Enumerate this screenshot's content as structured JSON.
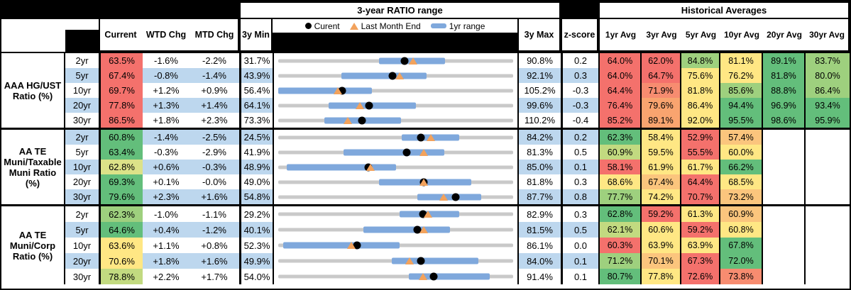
{
  "header": {
    "range_title": "3-year RATIO range",
    "hist_title": "Historical Averages",
    "col_current": "Current",
    "col_wtd": "WTD Chg",
    "col_mtd": "MTD Chg",
    "col_3ymin": "3y Min",
    "col_3ymax": "3y Max",
    "col_z": "z-score",
    "avg_cols": [
      "1yr Avg",
      "3yr Avg",
      "5yr Avg",
      "10yr Avg",
      "20yr Avg",
      "30yr Avg"
    ],
    "legend": {
      "current": "Curent",
      "last_month": "Last Month End",
      "range": "1yr range"
    },
    "legend_icons": [
      "current-dot-icon",
      "last-month-triangle-icon",
      "1yr-range-bar-icon"
    ]
  },
  "palette": {
    "r": "#F4716C",
    "s": "#F78C70",
    "o": "#F9A46F",
    "yo": "#FBC57D",
    "y": "#FFE784",
    "yg": "#DCE288",
    "gy": "#C2DA80",
    "lg": "#9ED07E",
    "g": "#63BE7B",
    "stripe": "#BDD7EE",
    "bar": "#7FA8DC",
    "line": "#C9C9C9",
    "tri": "#F2A25C"
  },
  "chart_data": {
    "type": "table",
    "note_series": [
      "Current (black dot)",
      "Last Month End (orange triangle)",
      "1yr range (blue bar)",
      "3yr range (gray line, spans 3y Min to 3y Max)"
    ],
    "groups": [
      {
        "label": "AAA HG/UST Ratio (%)",
        "rows": [
          {
            "tenor": "2yr",
            "current": "63.5%",
            "cc": "r",
            "wtd": "-1.6%",
            "mtd": "-2.2%",
            "min": "31.7%",
            "max": "90.8%",
            "z": "0.2",
            "range1yr": [
              57.0,
              73.7
            ],
            "avgs": [
              [
                "64.0%",
                "r"
              ],
              [
                "62.0%",
                "r"
              ],
              [
                "84.8%",
                "lg"
              ],
              [
                "81.1%",
                "y"
              ],
              [
                "89.1%",
                "g"
              ],
              [
                "83.7%",
                "lg"
              ]
            ]
          },
          {
            "tenor": "5yr",
            "current": "67.4%",
            "cc": "r",
            "wtd": "-0.8%",
            "mtd": "-1.4%",
            "min": "43.9%",
            "max": "92.1%",
            "z": "0.3",
            "range1yr": [
              56.9,
              74.4
            ],
            "avgs": [
              [
                "64.0%",
                "r"
              ],
              [
                "64.7%",
                "r"
              ],
              [
                "75.6%",
                "y"
              ],
              [
                "76.2%",
                "y"
              ],
              [
                "81.8%",
                "g"
              ],
              [
                "80.0%",
                "lg"
              ]
            ]
          },
          {
            "tenor": "10yr",
            "current": "69.7%",
            "cc": "r",
            "wtd": "+1.2%",
            "mtd": "+0.9%",
            "min": "56.4%",
            "max": "105.2%",
            "z": "-0.3",
            "range1yr": [
              56.4,
              75.9
            ],
            "avgs": [
              [
                "64.4%",
                "r"
              ],
              [
                "71.9%",
                "s"
              ],
              [
                "81.8%",
                "y"
              ],
              [
                "85.6%",
                "lg"
              ],
              [
                "88.8%",
                "g"
              ],
              [
                "86.4%",
                "lg"
              ]
            ]
          },
          {
            "tenor": "20yr",
            "current": "77.8%",
            "cc": "r",
            "wtd": "+1.3%",
            "mtd": "+1.4%",
            "min": "64.1%",
            "max": "99.6%",
            "z": "-0.3",
            "range1yr": [
              71.7,
              84.9
            ],
            "avgs": [
              [
                "76.4%",
                "r"
              ],
              [
                "79.6%",
                "o"
              ],
              [
                "86.4%",
                "y"
              ],
              [
                "94.4%",
                "g"
              ],
              [
                "96.9%",
                "g"
              ],
              [
                "93.4%",
                "g"
              ]
            ]
          },
          {
            "tenor": "30yr",
            "current": "86.5%",
            "cc": "r",
            "wtd": "+1.8%",
            "mtd": "+2.3%",
            "min": "73.3%",
            "max": "110.2%",
            "z": "-0.4",
            "range1yr": [
              80.5,
              92.6
            ],
            "avgs": [
              [
                "85.2%",
                "r"
              ],
              [
                "89.1%",
                "o"
              ],
              [
                "92.0%",
                "y"
              ],
              [
                "95.5%",
                "g"
              ],
              [
                "98.6%",
                "g"
              ],
              [
                "95.9%",
                "g"
              ]
            ]
          }
        ]
      },
      {
        "label": "AA TE Muni/Taxable Muni Ratio (%)",
        "rows": [
          {
            "tenor": "2yr",
            "current": "60.8%",
            "cc": "g",
            "wtd": "-1.4%",
            "mtd": "-2.5%",
            "min": "24.5%",
            "max": "84.2%",
            "z": "0.2",
            "range1yr": [
              55.8,
              70.5
            ],
            "avgs": [
              [
                "62.3%",
                "g"
              ],
              [
                "58.4%",
                "y"
              ],
              [
                "52.9%",
                "r"
              ],
              [
                "57.4%",
                "yo"
              ],
              null,
              null
            ]
          },
          {
            "tenor": "5yr",
            "current": "63.4%",
            "cc": "g",
            "wtd": "-0.3%",
            "mtd": "-2.9%",
            "min": "41.9%",
            "max": "81.3%",
            "z": "0.5",
            "range1yr": [
              52.9,
              69.7
            ],
            "avgs": [
              [
                "60.9%",
                "gy"
              ],
              [
                "59.5%",
                "y"
              ],
              [
                "55.5%",
                "r"
              ],
              [
                "60.0%",
                "y"
              ],
              null,
              null
            ]
          },
          {
            "tenor": "10yr",
            "current": "62.8%",
            "cc": "yg",
            "wtd": "+0.6%",
            "mtd": "-0.3%",
            "min": "48.9%",
            "max": "85.0%",
            "z": "0.1",
            "range1yr": [
              50.2,
              67.0
            ],
            "avgs": [
              [
                "58.1%",
                "r"
              ],
              [
                "61.9%",
                "y"
              ],
              [
                "61.7%",
                "y"
              ],
              [
                "66.2%",
                "g"
              ],
              null,
              null
            ]
          },
          {
            "tenor": "20yr",
            "current": "69.3%",
            "cc": "g",
            "wtd": "+0.1%",
            "mtd": "-0.0%",
            "min": "49.0%",
            "max": "81.8%",
            "z": "0.3",
            "range1yr": [
              63.1,
              76.0
            ],
            "avgs": [
              [
                "68.6%",
                "y"
              ],
              [
                "67.4%",
                "yo"
              ],
              [
                "64.4%",
                "r"
              ],
              [
                "68.5%",
                "y"
              ],
              null,
              null
            ]
          },
          {
            "tenor": "30yr",
            "current": "79.6%",
            "cc": "g",
            "wtd": "+2.3%",
            "mtd": "+1.6%",
            "min": "54.8%",
            "max": "87.7%",
            "z": "0.8",
            "range1yr": [
              74.3,
              83.2
            ],
            "avgs": [
              [
                "77.7%",
                "lg"
              ],
              [
                "74.2%",
                "y"
              ],
              [
                "70.7%",
                "r"
              ],
              [
                "73.2%",
                "yo"
              ],
              null,
              null
            ]
          }
        ]
      },
      {
        "label": "AA TE Muni/Corp Ratio (%)",
        "rows": [
          {
            "tenor": "2yr",
            "current": "62.3%",
            "cc": "lg",
            "wtd": "-1.0%",
            "mtd": "-1.1%",
            "min": "29.2%",
            "max": "82.9%",
            "z": "0.3",
            "range1yr": [
              56.9,
              70.6
            ],
            "avgs": [
              [
                "62.8%",
                "g"
              ],
              [
                "59.2%",
                "r"
              ],
              [
                "61.3%",
                "y"
              ],
              [
                "60.9%",
                "yo"
              ],
              null,
              null
            ]
          },
          {
            "tenor": "5yr",
            "current": "64.6%",
            "cc": "g",
            "wtd": "+0.4%",
            "mtd": "-1.2%",
            "min": "40.1%",
            "max": "81.5%",
            "z": "0.5",
            "range1yr": [
              55.1,
              70.4
            ],
            "avgs": [
              [
                "62.1%",
                "gy"
              ],
              [
                "60.6%",
                "y"
              ],
              [
                "59.2%",
                "r"
              ],
              [
                "60.8%",
                "y"
              ],
              null,
              null
            ]
          },
          {
            "tenor": "10yr",
            "current": "63.6%",
            "cc": "y",
            "wtd": "+1.1%",
            "mtd": "+0.8%",
            "min": "52.3%",
            "max": "86.1%",
            "z": "0.0",
            "range1yr": [
              53.0,
              69.8
            ],
            "avgs": [
              [
                "60.3%",
                "r"
              ],
              [
                "63.9%",
                "y"
              ],
              [
                "63.9%",
                "y"
              ],
              [
                "67.8%",
                "g"
              ],
              null,
              null
            ]
          },
          {
            "tenor": "20yr",
            "current": "70.6%",
            "cc": "y",
            "wtd": "+1.8%",
            "mtd": "+1.6%",
            "min": "49.9%",
            "max": "84.0%",
            "z": "0.1",
            "range1yr": [
              66.4,
              79.0
            ],
            "avgs": [
              [
                "71.2%",
                "lg"
              ],
              [
                "70.1%",
                "yo"
              ],
              [
                "67.3%",
                "r"
              ],
              [
                "72.0%",
                "g"
              ],
              null,
              null
            ]
          },
          {
            "tenor": "30yr",
            "current": "78.8%",
            "cc": "gy",
            "wtd": "+2.2%",
            "mtd": "+1.7%",
            "min": "54.0%",
            "max": "91.4%",
            "z": "0.1",
            "range1yr": [
              74.8,
              87.7
            ],
            "avgs": [
              [
                "80.7%",
                "g"
              ],
              [
                "77.8%",
                "y"
              ],
              [
                "72.6%",
                "r"
              ],
              [
                "73.8%",
                "s"
              ],
              null,
              null
            ]
          }
        ]
      }
    ]
  }
}
